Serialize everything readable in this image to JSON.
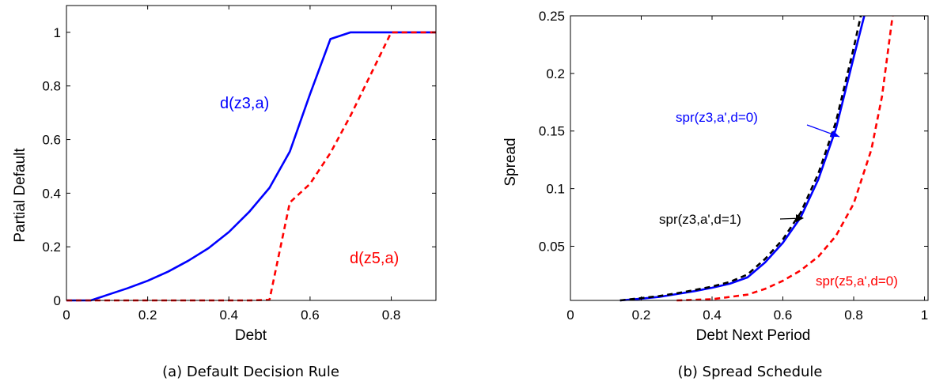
{
  "chart_data": [
    {
      "type": "line",
      "caption": "(a) Default Decision Rule",
      "xlabel": "Debt",
      "ylabel": "Partial Default",
      "xlim": [
        0,
        0.91
      ],
      "ylim": [
        0,
        1.1
      ],
      "xticks": [
        "0",
        "0.2",
        "0.4",
        "0.6",
        "0.8"
      ],
      "yticks": [
        "0",
        "0.2",
        "0.4",
        "0.6",
        "0.8",
        "1"
      ],
      "grid": false,
      "series": [
        {
          "name": "d(z3,a)",
          "color": "#0000ff",
          "style": "solid",
          "x": [
            0,
            0.06,
            0.1,
            0.15,
            0.2,
            0.25,
            0.3,
            0.35,
            0.4,
            0.45,
            0.5,
            0.55,
            0.6,
            0.65,
            0.7,
            0.75,
            0.8,
            0.85,
            0.91
          ],
          "y": [
            0,
            0,
            0.02,
            0.045,
            0.073,
            0.107,
            0.148,
            0.195,
            0.255,
            0.33,
            0.42,
            0.555,
            0.77,
            0.975,
            1.0,
            1.0,
            1.0,
            1.0,
            1.0
          ]
        },
        {
          "name": "d(z5,a)",
          "color": "#ff0000",
          "style": "dashed",
          "x": [
            0,
            0.45,
            0.5,
            0.55,
            0.6,
            0.65,
            0.7,
            0.75,
            0.8,
            0.85,
            0.91
          ],
          "y": [
            0,
            0,
            0.002,
            0.365,
            0.435,
            0.55,
            0.69,
            0.845,
            1.0,
            1.0,
            1.0
          ]
        }
      ],
      "annotations": [
        {
          "text": "d(z3,a)",
          "x": 0.265,
          "y": 0.82,
          "color": "#0000ff"
        },
        {
          "text": "d(z5,a)",
          "x": 0.6,
          "y": 0.17,
          "color": "#ff0000"
        }
      ]
    },
    {
      "type": "line",
      "caption": "(b) Spread Schedule",
      "xlabel": "Debt Next Period",
      "ylabel": "Spread",
      "xlim": [
        0,
        1.01
      ],
      "ylim": [
        0.003,
        0.25
      ],
      "xticks": [
        "0",
        "0.2",
        "0.4",
        "0.6",
        "0.8",
        "1"
      ],
      "yticks": [
        "0.05",
        "0.1",
        "0.15",
        "0.2",
        "0.25"
      ],
      "grid": false,
      "series": [
        {
          "name": "spr(z3,a',d=0)",
          "color": "#0000ff",
          "style": "solid",
          "x": [
            0.14,
            0.2,
            0.25,
            0.3,
            0.35,
            0.4,
            0.45,
            0.5,
            0.55,
            0.6,
            0.65,
            0.7,
            0.75,
            0.8,
            0.83
          ],
          "y": [
            0.003,
            0.0045,
            0.006,
            0.0085,
            0.011,
            0.014,
            0.0175,
            0.023,
            0.036,
            0.053,
            0.075,
            0.108,
            0.152,
            0.214,
            0.25
          ]
        },
        {
          "name": "spr(z3,a',d=1)",
          "color": "#000000",
          "style": "dashed",
          "x": [
            0.14,
            0.2,
            0.25,
            0.3,
            0.35,
            0.4,
            0.45,
            0.5,
            0.55,
            0.6,
            0.65,
            0.7,
            0.75,
            0.8,
            0.82
          ],
          "y": [
            0.003,
            0.005,
            0.0068,
            0.0092,
            0.012,
            0.015,
            0.019,
            0.0255,
            0.039,
            0.056,
            0.079,
            0.113,
            0.158,
            0.222,
            0.25
          ]
        },
        {
          "name": "spr(z5,a',d=0)",
          "color": "#ff0000",
          "style": "dashed",
          "x": [
            0.3,
            0.4,
            0.5,
            0.55,
            0.6,
            0.65,
            0.7,
            0.75,
            0.8,
            0.85,
            0.88,
            0.91
          ],
          "y": [
            0.003,
            0.004,
            0.008,
            0.013,
            0.02,
            0.029,
            0.041,
            0.059,
            0.087,
            0.134,
            0.18,
            0.25
          ]
        }
      ],
      "annotations": [
        {
          "text": "spr(z3,a',d=0)",
          "color": "#0000ff"
        },
        {
          "text": "spr(z3,a',d=1)",
          "color": "#000000"
        },
        {
          "text": "spr(z5,a',d=0)",
          "color": "#ff0000"
        }
      ]
    }
  ]
}
